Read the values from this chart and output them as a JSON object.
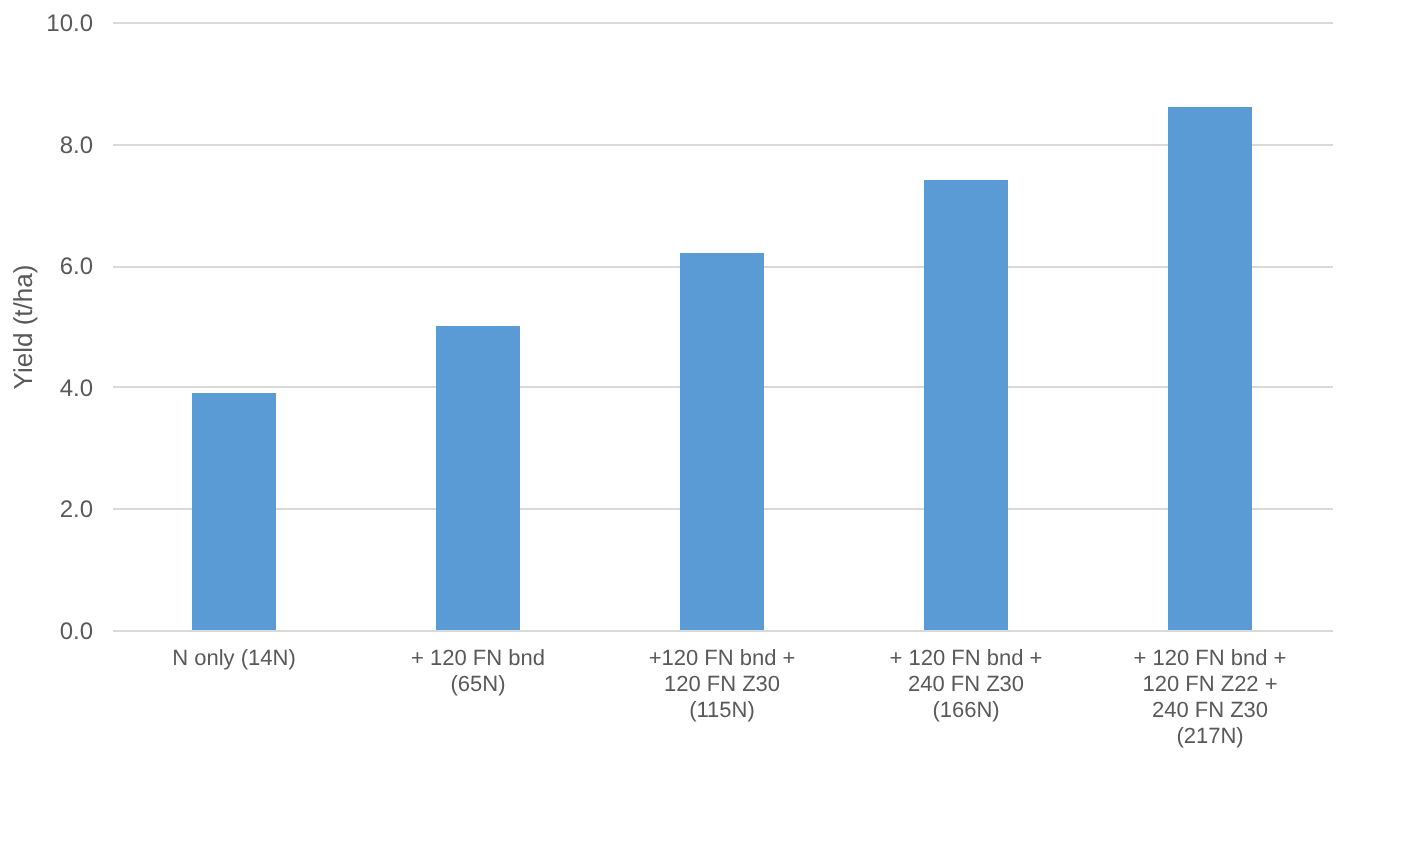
{
  "chart_data": {
    "type": "bar",
    "ylabel": "Yield (t/ha)",
    "categories": [
      "N only (14N)",
      "+ 120 FN bnd (65N)",
      "+120 FN bnd + 120 FN Z30 (115N)",
      "+ 120 FN bnd + 240 FN Z30 (166N)",
      "+ 120 FN bnd + 120 FN Z22 + 240 FN Z30 (217N)"
    ],
    "values": [
      3.9,
      5.0,
      6.2,
      7.4,
      8.6
    ],
    "color": "#5b9bd5",
    "ylim": [
      0,
      10
    ],
    "yticks": [
      {
        "value": 0,
        "label": "0.0"
      },
      {
        "value": 2,
        "label": "2.0"
      },
      {
        "value": 4,
        "label": "4.0"
      },
      {
        "value": 6,
        "label": "6.0"
      },
      {
        "value": 8,
        "label": "8.0"
      },
      {
        "value": 10,
        "label": "10.0"
      }
    ],
    "grid": "y"
  }
}
